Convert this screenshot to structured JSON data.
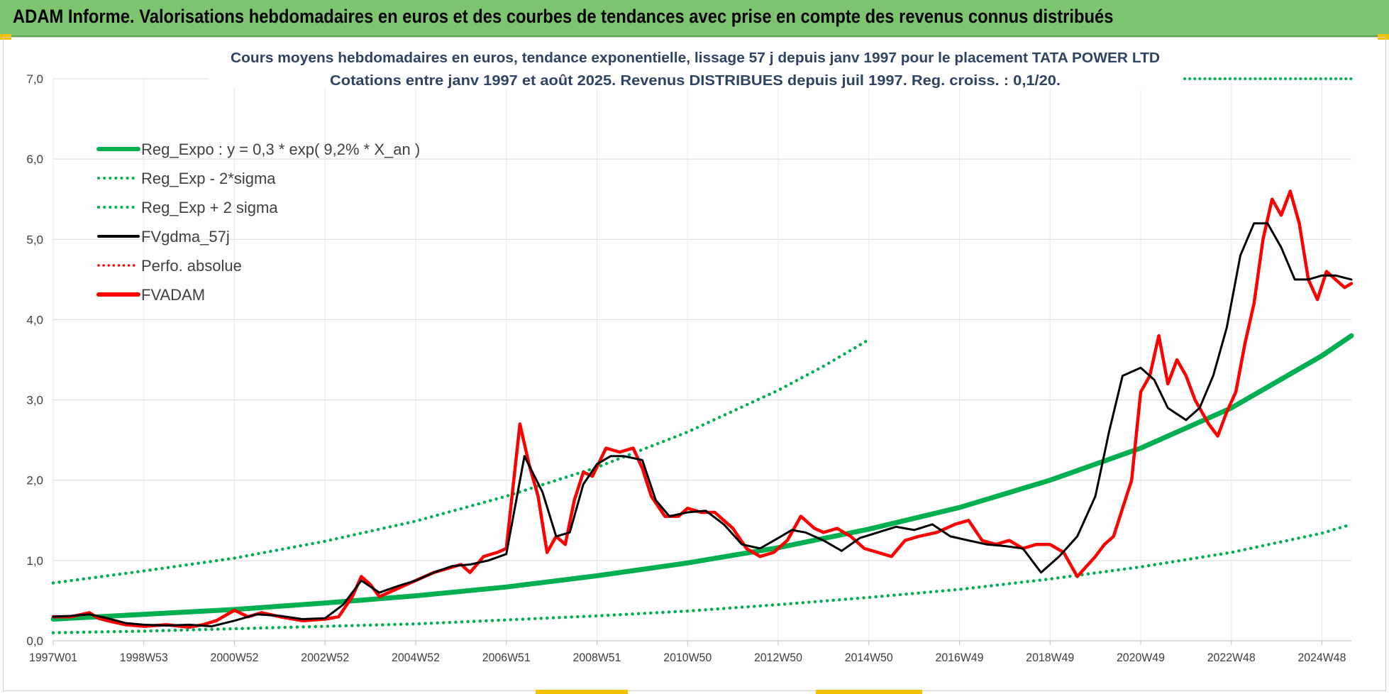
{
  "banner": {
    "title": "ADAM Informe. Valorisations hebdomadaires en euros et des courbes de tendances avec prise en compte des revenus connus distribués"
  },
  "colors": {
    "banner": "#7dc470",
    "regression": "#00b050",
    "fvgdma": "#000000",
    "fvadam": "#ff0000",
    "perfo": "#ff0000",
    "grid": "#d9d9d9"
  },
  "chart_data": {
    "type": "line",
    "title": "Cours moyens hebdomadaires en euros, tendance exponentielle, lissage 57 j depuis janv 1997  pour le placement TATA  POWER LTD",
    "subtitle": "Cotations entre janv 1997 et août 2025.  Revenus DISTRIBUES depuis juil 1997.  Reg. croiss. : 0,1/20.",
    "xlabel": "",
    "ylabel": "",
    "ylim": [
      0,
      7
    ],
    "xlim": [
      1997.0,
      2025.65
    ],
    "y_ticks": [
      "0,0",
      "1,0",
      "2,0",
      "3,0",
      "4,0",
      "5,0",
      "6,0",
      "7,0"
    ],
    "x_ticks": [
      {
        "label": "1997W01",
        "x": 1997.0
      },
      {
        "label": "1998W53",
        "x": 1999.0
      },
      {
        "label": "2000W52",
        "x": 2001.0
      },
      {
        "label": "2002W52",
        "x": 2003.0
      },
      {
        "label": "2004W52",
        "x": 2005.0
      },
      {
        "label": "2006W51",
        "x": 2007.0
      },
      {
        "label": "2008W51",
        "x": 2009.0
      },
      {
        "label": "2010W50",
        "x": 2011.0
      },
      {
        "label": "2012W50",
        "x": 2013.0
      },
      {
        "label": "2014W50",
        "x": 2015.0
      },
      {
        "label": "2016W49",
        "x": 2017.0
      },
      {
        "label": "2018W49",
        "x": 2019.0
      },
      {
        "label": "2020W49",
        "x": 2021.0
      },
      {
        "label": "2022W48",
        "x": 2023.0
      },
      {
        "label": "2024W48",
        "x": 2025.0
      }
    ],
    "grid": true,
    "legend_position": "top-left",
    "legend": [
      {
        "name": "Reg_Expo : y = 0,3 * exp( 9,2% *  X_an )",
        "style": "solid-thick",
        "color": "#00b050"
      },
      {
        "name": "Reg_Exp - 2*sigma",
        "style": "dotted",
        "color": "#00b050"
      },
      {
        "name": "Reg_Exp + 2 sigma",
        "style": "dotted",
        "color": "#00b050"
      },
      {
        "name": "FVgdma_57j",
        "style": "solid",
        "color": "#000000"
      },
      {
        "name": "Perfo. absolue",
        "style": "dotted",
        "color": "#ff0000"
      },
      {
        "name": "FVADAM",
        "style": "solid-thick",
        "color": "#ff0000"
      }
    ],
    "series": [
      {
        "name": "Reg_Expo : y = 0,3 * exp( 9,2% *  X_an )",
        "x": [
          1997.0,
          1999.0,
          2001.0,
          2003.0,
          2005.0,
          2007.0,
          2009.0,
          2011.0,
          2013.0,
          2015.0,
          2017.0,
          2019.0,
          2021.0,
          2023.0,
          2025.0,
          2025.65
        ],
        "values": [
          0.27,
          0.33,
          0.39,
          0.47,
          0.56,
          0.67,
          0.81,
          0.97,
          1.16,
          1.39,
          1.66,
          2.0,
          2.4,
          2.9,
          3.55,
          3.8
        ]
      },
      {
        "name": "Reg_Exp - 2*sigma",
        "x": [
          1997.0,
          1999.0,
          2001.0,
          2003.0,
          2005.0,
          2007.0,
          2009.0,
          2011.0,
          2013.0,
          2015.0,
          2017.0,
          2019.0,
          2021.0,
          2023.0,
          2025.0,
          2025.65
        ],
        "values": [
          0.1,
          0.12,
          0.15,
          0.18,
          0.21,
          0.26,
          0.31,
          0.37,
          0.45,
          0.54,
          0.64,
          0.77,
          0.92,
          1.1,
          1.34,
          1.45
        ]
      },
      {
        "name": "Reg_Exp + 2 sigma",
        "x": [
          1997.0,
          1999.0,
          2001.0,
          2003.0,
          2005.0,
          2007.0,
          2009.0,
          2011.0,
          2013.0,
          2014.0,
          2015.0
        ],
        "values": [
          0.72,
          0.87,
          1.03,
          1.24,
          1.49,
          1.8,
          2.16,
          2.6,
          3.12,
          3.42,
          3.75
        ]
      },
      {
        "name": "FVgdma_57j",
        "x": [
          1997.0,
          1997.4,
          1997.8,
          1998.2,
          1998.6,
          1999.0,
          1999.5,
          2000.0,
          2000.5,
          2001.0,
          2001.5,
          2002.0,
          2002.5,
          2003.0,
          2003.4,
          2003.8,
          2004.2,
          2004.6,
          2005.0,
          2005.4,
          2005.8,
          2006.2,
          2006.6,
          2007.0,
          2007.4,
          2007.8,
          2008.1,
          2008.4,
          2008.7,
          2009.0,
          2009.3,
          2009.6,
          2010.0,
          2010.3,
          2010.6,
          2011.0,
          2011.4,
          2011.8,
          2012.2,
          2012.6,
          2013.0,
          2013.3,
          2013.6,
          2014.0,
          2014.4,
          2014.8,
          2015.2,
          2015.6,
          2016.0,
          2016.4,
          2016.8,
          2017.2,
          2017.6,
          2018.0,
          2018.4,
          2018.8,
          2019.2,
          2019.6,
          2020.0,
          2020.3,
          2020.6,
          2021.0,
          2021.3,
          2021.6,
          2022.0,
          2022.3,
          2022.6,
          2022.9,
          2023.2,
          2023.5,
          2023.8,
          2024.1,
          2024.4,
          2024.7,
          2025.0,
          2025.3,
          2025.65
        ],
        "values": [
          0.3,
          0.31,
          0.33,
          0.28,
          0.22,
          0.2,
          0.19,
          0.2,
          0.18,
          0.25,
          0.33,
          0.31,
          0.27,
          0.28,
          0.45,
          0.75,
          0.6,
          0.68,
          0.75,
          0.85,
          0.93,
          0.95,
          1.0,
          1.08,
          2.3,
          1.85,
          1.3,
          1.35,
          1.95,
          2.2,
          2.3,
          2.3,
          2.25,
          1.75,
          1.55,
          1.6,
          1.62,
          1.45,
          1.2,
          1.15,
          1.28,
          1.38,
          1.35,
          1.25,
          1.12,
          1.28,
          1.35,
          1.42,
          1.38,
          1.45,
          1.3,
          1.25,
          1.2,
          1.18,
          1.15,
          0.85,
          1.05,
          1.3,
          1.8,
          2.6,
          3.3,
          3.4,
          3.25,
          2.9,
          2.75,
          2.9,
          3.3,
          3.9,
          4.8,
          5.2,
          5.2,
          4.9,
          4.5,
          4.5,
          4.55,
          4.55,
          4.5
        ]
      },
      {
        "name": "FVADAM",
        "x": [
          1997.0,
          1997.4,
          1997.8,
          1998.0,
          1998.2,
          1998.6,
          1999.0,
          1999.5,
          2000.0,
          2000.3,
          2000.6,
          2001.0,
          2001.3,
          2001.6,
          2002.0,
          2002.5,
          2003.0,
          2003.3,
          2003.6,
          2003.8,
          2004.0,
          2004.2,
          2004.6,
          2005.0,
          2005.4,
          2005.7,
          2006.0,
          2006.2,
          2006.5,
          2006.8,
          2007.0,
          2007.3,
          2007.5,
          2007.7,
          2007.9,
          2008.1,
          2008.3,
          2008.5,
          2008.7,
          2008.9,
          2009.2,
          2009.5,
          2009.8,
          2010.0,
          2010.2,
          2010.5,
          2010.8,
          2011.0,
          2011.3,
          2011.6,
          2012.0,
          2012.3,
          2012.6,
          2012.9,
          2013.2,
          2013.5,
          2013.8,
          2014.0,
          2014.3,
          2014.6,
          2014.9,
          2015.2,
          2015.5,
          2015.8,
          2016.1,
          2016.5,
          2016.9,
          2017.2,
          2017.5,
          2017.8,
          2018.1,
          2018.4,
          2018.7,
          2019.0,
          2019.3,
          2019.6,
          2020.0,
          2020.2,
          2020.4,
          2020.6,
          2020.8,
          2021.0,
          2021.2,
          2021.4,
          2021.6,
          2021.8,
          2022.0,
          2022.2,
          2022.5,
          2022.7,
          2022.9,
          2023.1,
          2023.3,
          2023.5,
          2023.7,
          2023.9,
          2024.1,
          2024.3,
          2024.5,
          2024.7,
          2024.9,
          2025.1,
          2025.3,
          2025.5,
          2025.65
        ],
        "values": [
          0.3,
          0.3,
          0.35,
          0.28,
          0.25,
          0.2,
          0.18,
          0.2,
          0.17,
          0.2,
          0.25,
          0.38,
          0.3,
          0.35,
          0.3,
          0.25,
          0.27,
          0.3,
          0.55,
          0.8,
          0.7,
          0.55,
          0.65,
          0.75,
          0.85,
          0.9,
          0.95,
          0.85,
          1.05,
          1.1,
          1.15,
          2.7,
          2.2,
          1.8,
          1.1,
          1.3,
          1.2,
          1.75,
          2.1,
          2.05,
          2.4,
          2.35,
          2.4,
          2.15,
          1.8,
          1.55,
          1.55,
          1.65,
          1.6,
          1.6,
          1.4,
          1.15,
          1.05,
          1.1,
          1.25,
          1.55,
          1.4,
          1.35,
          1.4,
          1.3,
          1.15,
          1.1,
          1.05,
          1.25,
          1.3,
          1.35,
          1.45,
          1.5,
          1.25,
          1.2,
          1.25,
          1.15,
          1.2,
          1.2,
          1.1,
          0.8,
          1.05,
          1.2,
          1.3,
          1.65,
          2.0,
          3.1,
          3.3,
          3.8,
          3.2,
          3.5,
          3.3,
          3.0,
          2.7,
          2.55,
          2.85,
          3.1,
          3.7,
          4.2,
          5.0,
          5.5,
          5.3,
          5.6,
          5.2,
          4.5,
          4.25,
          4.6,
          4.5,
          4.4,
          4.45
        ]
      },
      {
        "name": "Perfo. absolue",
        "x": [
          2025.65
        ],
        "values": [
          7.0
        ]
      }
    ]
  }
}
